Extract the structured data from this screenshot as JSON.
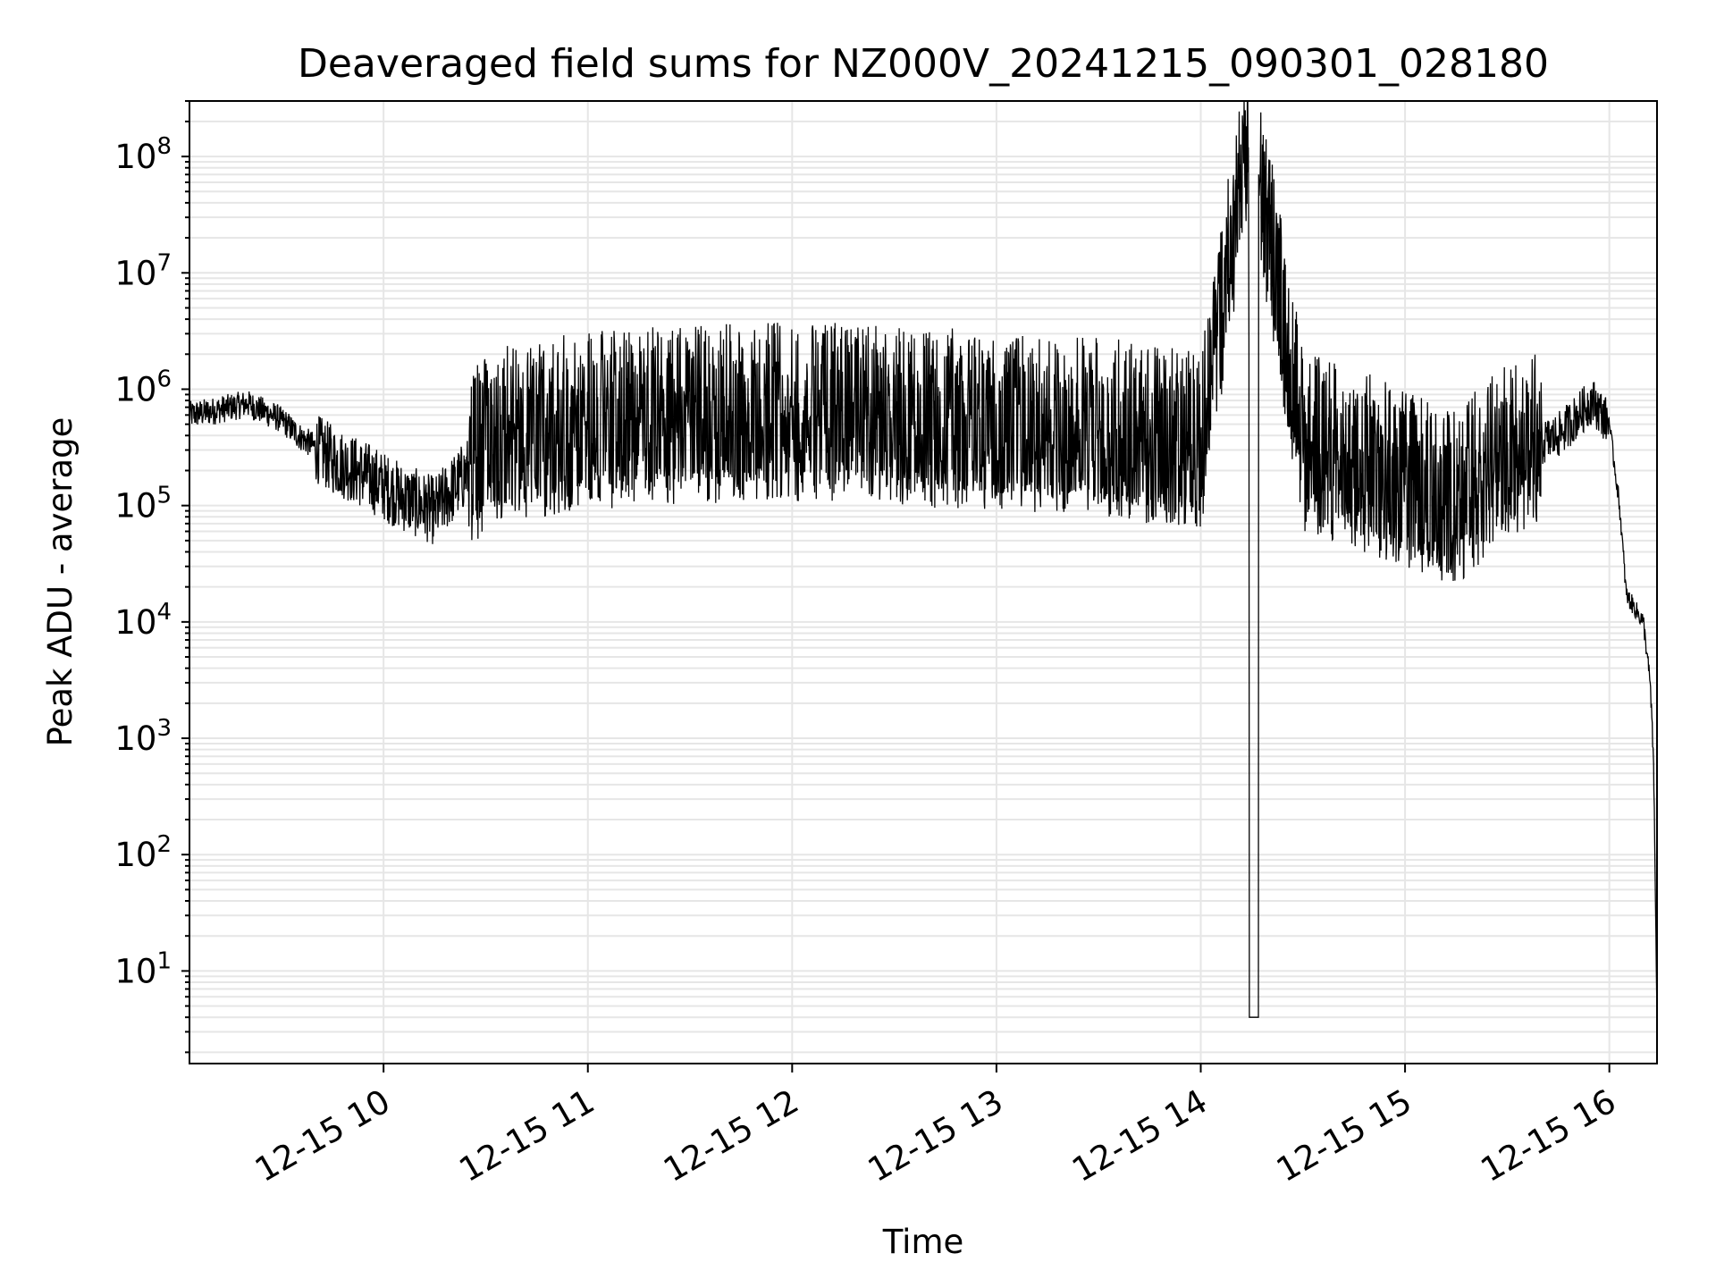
{
  "chart_data": {
    "type": "line",
    "title": "Deaveraged field sums for NZ000V_20241215_090301_028180",
    "xlabel": "Time",
    "ylabel": "Peak ADU - average",
    "yscale": "log",
    "ylim": [
      1.6,
      300000000
    ],
    "xlim": [
      "2024-12-15 09:03",
      "2024-12-15 16:14"
    ],
    "grid": true,
    "line_color": "#000000",
    "x_ticks": [
      "12-15 10",
      "12-15 11",
      "12-15 12",
      "12-15 13",
      "12-15 14",
      "12-15 15",
      "12-15 16"
    ],
    "y_tick_exponents": [
      "1",
      "2",
      "3",
      "4",
      "5",
      "6",
      "7",
      "8"
    ],
    "series": [
      {
        "x": [
          "2024-12-15 09:03",
          "2024-12-15 09:10",
          "2024-12-15 09:20",
          "2024-12-15 09:30",
          "2024-12-15 09:35",
          "2024-12-15 09:45",
          "2024-12-15 09:55",
          "2024-12-15 10:05",
          "2024-12-15 10:15",
          "2024-12-15 10:30",
          "2024-12-15 10:45",
          "2024-12-15 11:00",
          "2024-12-15 11:30",
          "2024-12-15 12:00",
          "2024-12-15 12:30",
          "2024-12-15 13:00",
          "2024-12-15 13:30",
          "2024-12-15 14:00",
          "2024-12-15 14:14",
          "2024-12-15 14:15",
          "2024-12-15 14:17",
          "2024-12-15 14:30",
          "2024-12-15 15:00",
          "2024-12-15 15:15",
          "2024-12-15 15:30",
          "2024-12-15 15:45",
          "2024-12-15 15:55",
          "2024-12-15 16:00",
          "2024-12-15 16:03",
          "2024-12-15 16:05",
          "2024-12-15 16:10",
          "2024-12-15 16:12",
          "2024-12-15 16:13",
          "2024-12-15 16:14"
        ],
        "y": [
          600000,
          650000,
          750000,
          550000,
          400000,
          250000,
          180000,
          120000,
          90000,
          300000,
          400000,
          450000,
          500000,
          550000,
          500000,
          450000,
          400000,
          300000,
          120000000,
          4,
          70000000,
          300000,
          150000,
          100000,
          250000,
          400000,
          800000,
          500000,
          100000,
          17000,
          10000,
          3000,
          600,
          4
        ]
      }
    ]
  }
}
